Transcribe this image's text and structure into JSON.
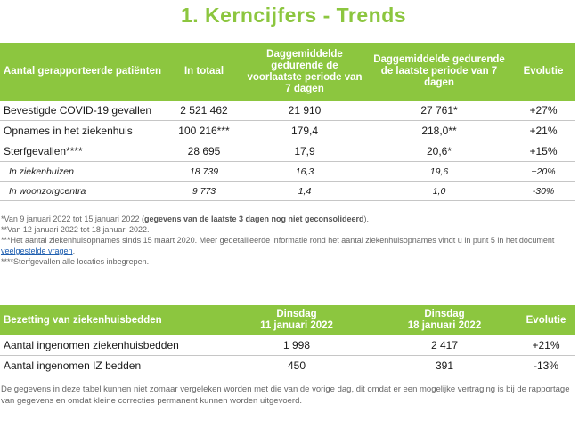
{
  "title": "1. Kerncijfers - Trends",
  "colors": {
    "accent": "#8cc63f",
    "header_text": "#ffffff",
    "link": "#1f5fb0"
  },
  "table1": {
    "headers": [
      "Aantal gerapporteerde patiënten",
      "In totaal",
      "Daggemiddelde gedurende de voorlaatste periode van 7 dagen",
      "Daggemiddelde gedurende de laatste periode van 7 dagen",
      "Evolutie"
    ],
    "rows": [
      [
        "Bevestigde COVID-19 gevallen",
        "2 521 462",
        "21 910",
        "27 761*",
        "+27%"
      ],
      [
        "Opnames in het ziekenhuis",
        "100 216***",
        "179,4",
        "218,0**",
        "+21%"
      ],
      [
        "Sterfgevallen****",
        "28 695",
        "17,9",
        "20,6*",
        "+15%"
      ]
    ],
    "subrows": [
      [
        "In ziekenhuizen",
        "18 739",
        "16,3",
        "19,6",
        "+20%"
      ],
      [
        "In woonzorgcentra",
        "9 773",
        "1,4",
        "1,0",
        "-30%"
      ]
    ]
  },
  "notes": {
    "n1_prefix": "*Van 9 januari 2022 tot 15 januari 2022 (",
    "n1_bold": "gegevens van de laatste 3 dagen nog niet geconsolideerd",
    "n1_suffix": ").",
    "n2": "**Van 12 januari 2022 tot 18 januari 2022.",
    "n3_prefix": "***Het aantal ziekenhuisopnames sinds 15 maart 2020. Meer gedetailleerde informatie rond het aantal ziekenhuisopnames vindt u in punt 5 in het document ",
    "n3_link": "veelgestelde vragen",
    "n3_suffix": ".",
    "n4": "****Sterfgevallen alle locaties inbegrepen."
  },
  "table2": {
    "headers": [
      "Bezetting van ziekenhuisbedden",
      "Dinsdag",
      "11 januari 2022",
      "Dinsdag",
      "18 januari 2022",
      "Evolutie"
    ],
    "rows": [
      [
        "Aantal ingenomen ziekenhuisbedden",
        "1 998",
        "2 417",
        "+21%"
      ],
      [
        "Aantal ingenomen IZ bedden",
        "450",
        "391",
        "-13%"
      ]
    ]
  },
  "footnote": "De gegevens in deze tabel kunnen niet zomaar vergeleken worden met die van de vorige dag, dit omdat er een mogelijke vertraging is bij de rapportage van gegevens en omdat kleine correcties permanent kunnen worden uitgevoerd."
}
